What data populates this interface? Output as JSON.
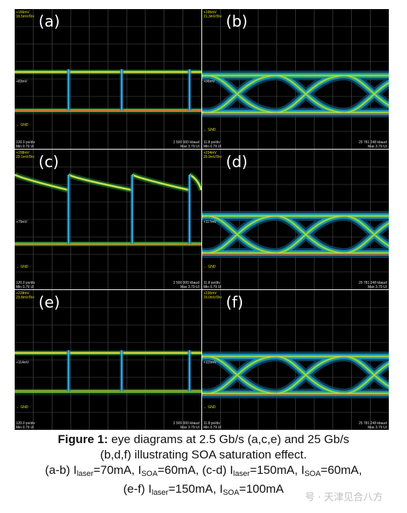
{
  "panels": [
    {
      "label": "(a)",
      "type": "nrz-2g5",
      "top_left": [
        "+166mV",
        "19.5mV/Div"
      ],
      "mid": "+83mV",
      "gnd": "GND",
      "bottom_left": [
        "120.0 ps/div",
        "Min 0.79 UI"
      ],
      "bottom_right": [
        "2 500 000 kbaud",
        "Max 3.79 UI"
      ]
    },
    {
      "label": "(b)",
      "type": "eye-25g",
      "top_left": [
        "+195mV",
        "21.3mV/Div"
      ],
      "mid": "+96mV",
      "gnd": "GND",
      "bottom_left": [
        "11.8 ps/div",
        "Min 0.79 UI"
      ],
      "bottom_right": [
        "25 781 248 kbaud",
        "Max 3.79 UI"
      ]
    },
    {
      "label": "(c)",
      "type": "nrz-sat",
      "top_left": [
        "+158mV",
        "23.1mV/Div"
      ],
      "mid": "+79mV",
      "gnd": "GND",
      "bottom_left": [
        "120.0 ps/div",
        "Min 0.79 UI"
      ],
      "bottom_right": [
        "2 500 000 kbaud",
        "Max 3.79 UI"
      ]
    },
    {
      "label": "(d)",
      "type": "eye-25g",
      "top_left": [
        "+234mV",
        "25.9mV/Div"
      ],
      "mid": "+117mV",
      "gnd": "GND",
      "bottom_left": [
        "11.8 ps/div",
        "Min 0.79 UI"
      ],
      "bottom_right": [
        "25 781 248 kbaud",
        "Max 3.79 UI"
      ]
    },
    {
      "label": "(e)",
      "type": "nrz-2g5",
      "top_left": [
        "+228mV",
        "23.8mV/Div"
      ],
      "mid": "+114mV",
      "gnd": "GND",
      "bottom_left": [
        "120.0 ps/div",
        "Min 0.79 UI"
      ],
      "bottom_right": [
        "2 500 000 kbaud",
        "Max 3.79 UI"
      ]
    },
    {
      "label": "(f)",
      "type": "eye-25g",
      "top_left": [
        "+230mV",
        "23.0mV/Div"
      ],
      "mid": "+115mV",
      "gnd": "GND",
      "bottom_left": [
        "11.8 ps/div",
        "Min 0.79 UI"
      ],
      "bottom_right": [
        "25 781 248 kbaud",
        "Max 3.79 UI"
      ]
    }
  ],
  "caption": {
    "fig": "Figure 1:",
    "line1": " eye diagrams at 2.5 Gb/s (a,c,e) and 25 Gb/s",
    "line2": "(b,d,f) illustrating SOA saturation effect.",
    "l3a": "(a-b) I",
    "l3b": "laser",
    "l3c": "=70mA, I",
    "l3d": "SOA",
    "l3e": "=60mA, (c-d) I",
    "l3f": "laser",
    "l3g": "=150mA, I",
    "l3h": "SOA",
    "l3i": "=60mA,",
    "l4a": "(e-f) I",
    "l4b": "laser",
    "l4c": "=150mA, I",
    "l4d": "SOA",
    "l4e": "=100mA"
  },
  "watermark": "号 · 天津见合八方"
}
